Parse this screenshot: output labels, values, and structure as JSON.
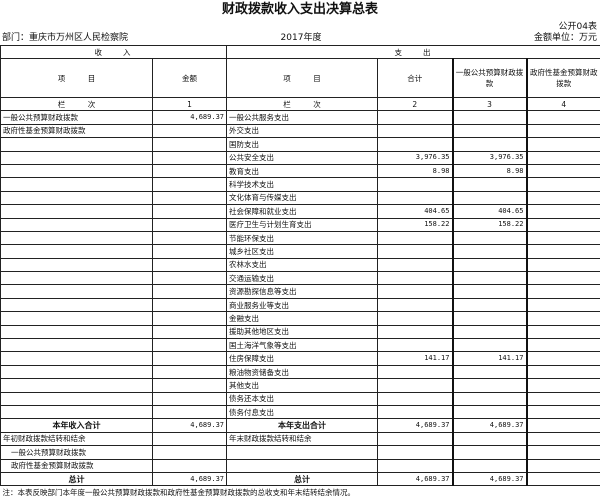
{
  "title": "财政拨款收入支出决算总表",
  "form_code": "公开04表",
  "department": "部门：重庆市万州区人民检察院",
  "year": "2017年度",
  "unit": "金额单位：万元",
  "sections": {
    "income": "收　　入",
    "expense": "支　　出"
  },
  "headers": {
    "item_left": "项　　　目",
    "amount": "金额",
    "item_right": "项　　　目",
    "total": "合计",
    "general": "一般公共预算财政拨款",
    "fund": "政府性基金预算财政拨款"
  },
  "column_index": {
    "label_left": "栏　　　次",
    "c1": "1",
    "label_right": "栏　　　次",
    "c2": "2",
    "c3": "3",
    "c4": "4"
  },
  "rows": [
    {
      "in_item": "一般公共预算财政拨款",
      "in_amt": "4,689.37",
      "out_item": "一般公共服务支出",
      "total": "",
      "general": "",
      "fund": ""
    },
    {
      "in_item": "政府性基金预算财政拨款",
      "in_amt": "",
      "out_item": "外交支出",
      "total": "",
      "general": "",
      "fund": ""
    },
    {
      "in_item": "",
      "in_amt": "",
      "out_item": "国防支出",
      "total": "",
      "general": "",
      "fund": ""
    },
    {
      "in_item": "",
      "in_amt": "",
      "out_item": "公共安全支出",
      "total": "3,976.35",
      "general": "3,976.35",
      "fund": ""
    },
    {
      "in_item": "",
      "in_amt": "",
      "out_item": "教育支出",
      "total": "8.98",
      "general": "8.98",
      "fund": ""
    },
    {
      "in_item": "",
      "in_amt": "",
      "out_item": "科学技术支出",
      "total": "",
      "general": "",
      "fund": ""
    },
    {
      "in_item": "",
      "in_amt": "",
      "out_item": "文化体育与传媒支出",
      "total": "",
      "general": "",
      "fund": ""
    },
    {
      "in_item": "",
      "in_amt": "",
      "out_item": "社会保障和就业支出",
      "total": "404.65",
      "general": "404.65",
      "fund": ""
    },
    {
      "in_item": "",
      "in_amt": "",
      "out_item": "医疗卫生与计划生育支出",
      "total": "158.22",
      "general": "158.22",
      "fund": ""
    },
    {
      "in_item": "",
      "in_amt": "",
      "out_item": "节能环保支出",
      "total": "",
      "general": "",
      "fund": ""
    },
    {
      "in_item": "",
      "in_amt": "",
      "out_item": "城乡社区支出",
      "total": "",
      "general": "",
      "fund": ""
    },
    {
      "in_item": "",
      "in_amt": "",
      "out_item": "农林水支出",
      "total": "",
      "general": "",
      "fund": ""
    },
    {
      "in_item": "",
      "in_amt": "",
      "out_item": "交通运输支出",
      "total": "",
      "general": "",
      "fund": ""
    },
    {
      "in_item": "",
      "in_amt": "",
      "out_item": "资源勘探信息等支出",
      "total": "",
      "general": "",
      "fund": ""
    },
    {
      "in_item": "",
      "in_amt": "",
      "out_item": "商业服务业等支出",
      "total": "",
      "general": "",
      "fund": ""
    },
    {
      "in_item": "",
      "in_amt": "",
      "out_item": "金融支出",
      "total": "",
      "general": "",
      "fund": ""
    },
    {
      "in_item": "",
      "in_amt": "",
      "out_item": "援助其他地区支出",
      "total": "",
      "general": "",
      "fund": ""
    },
    {
      "in_item": "",
      "in_amt": "",
      "out_item": "国土海洋气象等支出",
      "total": "",
      "general": "",
      "fund": ""
    },
    {
      "in_item": "",
      "in_amt": "",
      "out_item": "住房保障支出",
      "total": "141.17",
      "general": "141.17",
      "fund": ""
    },
    {
      "in_item": "",
      "in_amt": "",
      "out_item": "粮油物资储备支出",
      "total": "",
      "general": "",
      "fund": ""
    },
    {
      "in_item": "",
      "in_amt": "",
      "out_item": "其他支出",
      "total": "",
      "general": "",
      "fund": ""
    },
    {
      "in_item": "",
      "in_amt": "",
      "out_item": "债务还本支出",
      "total": "",
      "general": "",
      "fund": ""
    },
    {
      "in_item": "",
      "in_amt": "",
      "out_item": "债务付息支出",
      "total": "",
      "general": "",
      "fund": ""
    },
    {
      "in_item": "本年收入合计",
      "in_amt": "4,689.37",
      "out_item": "本年支出合计",
      "total": "4,689.37",
      "general": "4,689.37",
      "fund": "",
      "bold": true
    },
    {
      "in_item": "年初财政拨款结转和结余",
      "in_amt": "",
      "out_item": "年末财政拨款结转和结余",
      "total": "",
      "general": "",
      "fund": ""
    },
    {
      "in_item": "一般公共预算财政拨款",
      "in_amt": "",
      "out_item": "",
      "total": "",
      "general": "",
      "fund": "",
      "indent": true
    },
    {
      "in_item": "政府性基金预算财政拨款",
      "in_amt": "",
      "out_item": "",
      "total": "",
      "general": "",
      "fund": "",
      "indent": true
    },
    {
      "in_item": "总计",
      "in_amt": "4,689.37",
      "out_item": "总计",
      "total": "4,689.37",
      "general": "4,689.37",
      "fund": "",
      "bold": true
    }
  ],
  "note": "注：本表反映部门本年度一般公共预算财政拨款和政府性基金预算财政拨款的总收支和年末结转结余情况。"
}
